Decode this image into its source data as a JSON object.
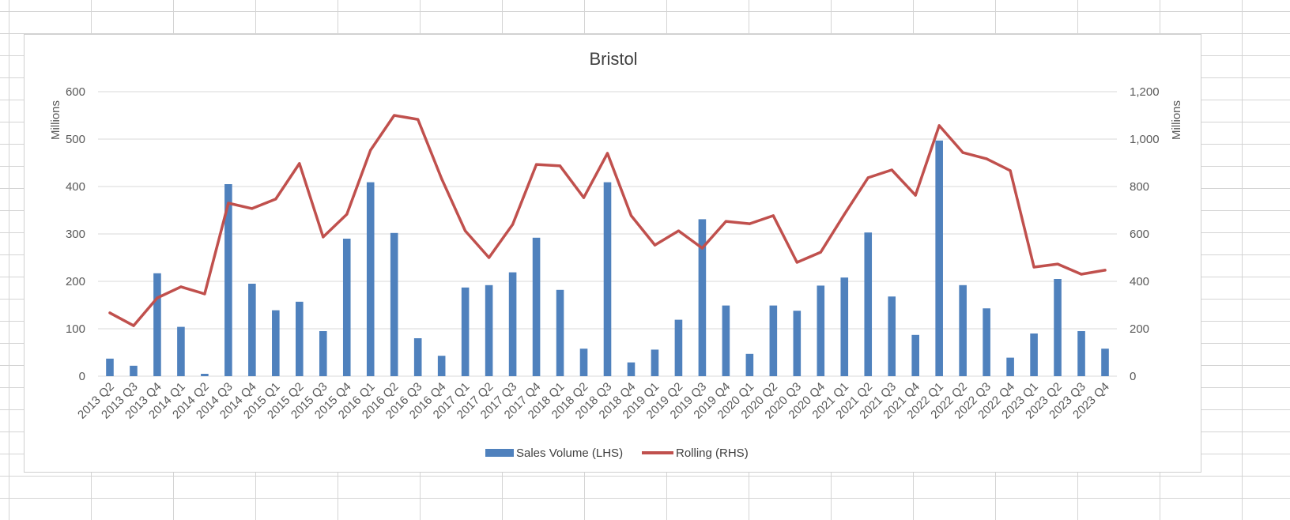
{
  "chart_data": {
    "type": "bar+line",
    "title": "Bristol",
    "categories": [
      "2013 Q2",
      "2013 Q3",
      "2013 Q4",
      "2014 Q1",
      "2014 Q2",
      "2014 Q3",
      "2014 Q4",
      "2015 Q1",
      "2015 Q2",
      "2015 Q3",
      "2015 Q4",
      "2016 Q1",
      "2016 Q2",
      "2016 Q3",
      "2016 Q4",
      "2017 Q1",
      "2017 Q2",
      "2017 Q3",
      "2017 Q4",
      "2018 Q1",
      "2018 Q2",
      "2018 Q3",
      "2018 Q4",
      "2019 Q1",
      "2019 Q2",
      "2019 Q3",
      "2019 Q4",
      "2020 Q1",
      "2020 Q2",
      "2020 Q3",
      "2020 Q4",
      "2021 Q1",
      "2021 Q2",
      "2021 Q3",
      "2021 Q4",
      "2022 Q1",
      "2022 Q2",
      "2022 Q3",
      "2022 Q4",
      "2023 Q1",
      "2023 Q2",
      "2023 Q3",
      "2023 Q4"
    ],
    "series": [
      {
        "name": "Sales Volume (LHS)",
        "type": "bar",
        "axis": "left",
        "color": "#4f81bd",
        "values": [
          37,
          22,
          217,
          104,
          5,
          405,
          195,
          139,
          157,
          95,
          290,
          409,
          302,
          80,
          43,
          187,
          192,
          219,
          292,
          182,
          58,
          409,
          29,
          56,
          119,
          331,
          149,
          47,
          149,
          138,
          191,
          208,
          303,
          168,
          87,
          497,
          192,
          143,
          39,
          90,
          205,
          95,
          58
        ]
      },
      {
        "name": "Rolling (RHS)",
        "type": "line",
        "axis": "right",
        "color": "#c0504d",
        "values": [
          267,
          213,
          330,
          377,
          347,
          730,
          707,
          747,
          897,
          587,
          683,
          953,
          1100,
          1083,
          833,
          613,
          500,
          640,
          893,
          887,
          753,
          940,
          677,
          553,
          613,
          540,
          653,
          643,
          677,
          480,
          523,
          683,
          837,
          870,
          763,
          1057,
          943,
          917,
          867,
          460,
          473,
          430,
          447
        ]
      }
    ],
    "left_axis": {
      "title": "Millions",
      "range": [
        0,
        600
      ],
      "ticks": [
        "0",
        "100",
        "200",
        "300",
        "400",
        "500",
        "600"
      ]
    },
    "right_axis": {
      "title": "Millions",
      "range": [
        0,
        1200
      ],
      "ticks": [
        "0",
        "200",
        "400",
        "600",
        "800",
        "1,000",
        "1,200"
      ]
    },
    "grid": true,
    "legend_position": "bottom"
  }
}
